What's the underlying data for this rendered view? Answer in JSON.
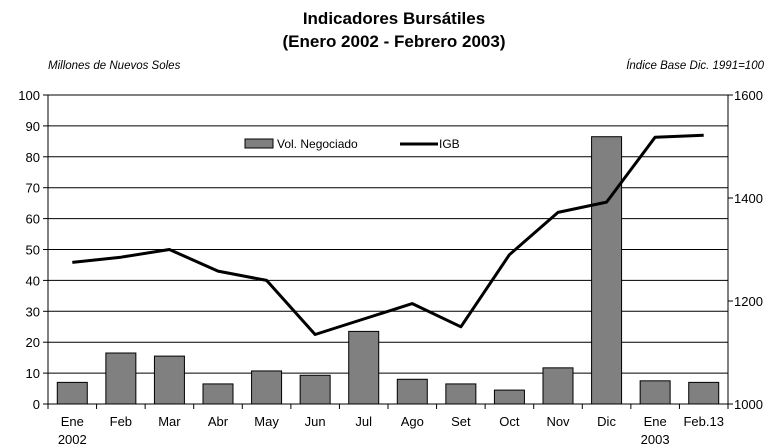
{
  "chart_data": {
    "type": "bar+line",
    "title": "Indicadores Bursátiles",
    "subtitle": "(Enero 2002 - Febrero 2003)",
    "ylabel_left": "Millones de Nuevos Soles",
    "ylabel_right": "Índice Base Dic. 1991=100",
    "categories": [
      "Ene",
      "Feb",
      "Mar",
      "Abr",
      "May",
      "Jun",
      "Jul",
      "Ago",
      "Set",
      "Oct",
      "Nov",
      "Dic",
      "Ene",
      "Feb.13"
    ],
    "year_labels": [
      {
        "index": 0,
        "text": "2002"
      },
      {
        "index": 12,
        "text": "2003"
      }
    ],
    "ylim_left": [
      0,
      100
    ],
    "yticks_left": [
      0,
      10,
      20,
      30,
      40,
      50,
      60,
      70,
      80,
      90,
      100
    ],
    "ylim_right": [
      1000,
      1600
    ],
    "yticks_right": [
      1000,
      1200,
      1400,
      1600
    ],
    "grid": true,
    "legend_position": "top-center",
    "series": [
      {
        "name": "Vol. Negociado",
        "type": "bar",
        "axis": "left",
        "color": "#808080",
        "values": [
          7,
          16.5,
          15.5,
          6.5,
          10.7,
          9.3,
          23.5,
          8,
          6.5,
          4.5,
          11.7,
          86.5,
          7.5,
          7
        ]
      },
      {
        "name": "IGB",
        "type": "line",
        "axis": "right",
        "color": "#000000",
        "values": [
          1275,
          1285,
          1300,
          1258,
          1240,
          1135,
          1165,
          1195,
          1150,
          1290,
          1372,
          1392,
          1518,
          1522
        ]
      }
    ]
  }
}
